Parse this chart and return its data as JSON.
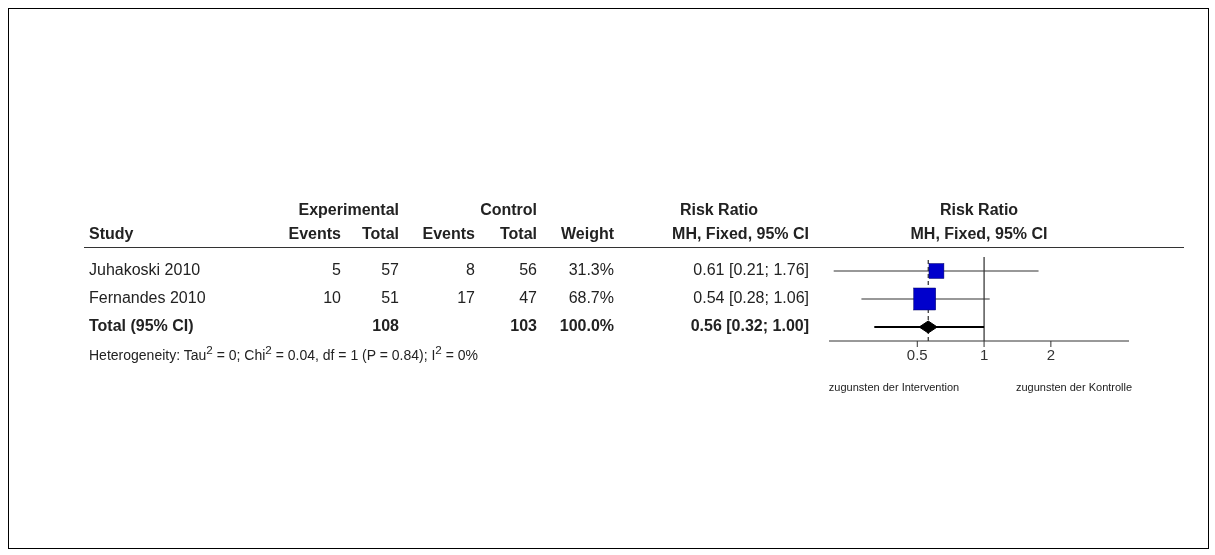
{
  "chart_data": [
    {
      "type": "other",
      "ylabel": "Study",
      "categories": [
        "Juhakoski 2010",
        "Fernandes 2010",
        "Total (95% CI)"
      ],
      "series": [
        {
          "name": "Events",
          "values": [
            5,
            10,
            null
          ]
        },
        {
          "name": "Total",
          "values": [
            57,
            51,
            108
          ]
        },
        {
          "name": "Events",
          "values": [
            8,
            17,
            null
          ]
        },
        {
          "name": "Total",
          "values": [
            56,
            47,
            103
          ]
        },
        {
          "name": "Weight",
          "values": [
            31.3,
            68.7,
            100.0
          ],
          "value_labels": [
            "31.3%",
            "68.7%",
            "100.0%"
          ]
        },
        {
          "name": "MH, Fixed, 95% CI",
          "values": [
            0.61,
            0.54,
            0.56
          ],
          "value_labels": [
            "0.61 [0.21; 1.76]",
            "0.54 [0.28; 1.06]",
            "0.56 [0.32; 1.00]"
          ]
        }
      ],
      "data_labels": true,
      "annotations": [
        "Experimental",
        "Control",
        "Risk Ratio",
        "Heterogeneity: Tau$^{2}$ = 0; Chi$^{2}$ = 0.04, df = 1 (P = 0.84); I$^{2}$ = 0%"
      ]
    },
    {
      "type": "scatter",
      "orientation": "horizontal",
      "title": "Risk Ratio",
      "subtitle": "MH, Fixed, 95% CI",
      "categories": [
        null,
        null,
        null
      ],
      "series": [
        {
          "color": "#0000cc",
          "marker": "square",
          "values": [
            0.61,
            0.54,
            null
          ],
          "errors": [
            [
              0.21,
              1.76
            ],
            [
              0.28,
              1.06
            ],
            null
          ],
          "sizes": [
            0.46,
            1,
            null
          ]
        },
        {
          "color": "#000000",
          "marker": "diamond",
          "values": [
            null,
            null,
            0.56
          ],
          "errors": [
            null,
            null,
            [
              0.32,
              1.0
            ]
          ]
        }
      ],
      "log": "x",
      "xlim": [
        0.2,
        4.5
      ],
      "xticks": [
        0.5,
        1,
        2
      ],
      "tick_labels": "x",
      "grid": false,
      "legend": false,
      "ref_lines": [
        {
          "axis": "x",
          "value": 1,
          "color": "#000000",
          "line_style": "solid"
        },
        {
          "axis": "x",
          "value": 0.56,
          "color": "#000000",
          "line_style": "dashed"
        }
      ],
      "annotations": [
        "zugunsten der Intervention",
        "zugunsten der Kontrolle"
      ]
    }
  ]
}
